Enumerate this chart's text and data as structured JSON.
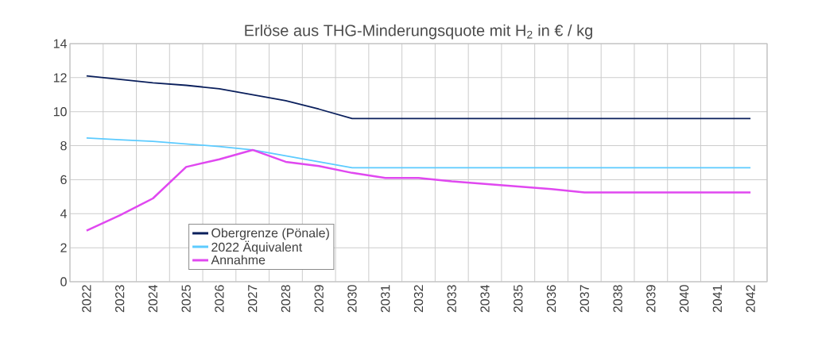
{
  "chart_data": {
    "type": "line",
    "title": "Erlöse aus THG-Minderungsquote mit H$_{2}$ in € / kg",
    "categories": [
      "2022",
      "2023",
      "2024",
      "2025",
      "2026",
      "2027",
      "2028",
      "2029",
      "2030",
      "2031",
      "2032",
      "2033",
      "2034",
      "2035",
      "2036",
      "2037",
      "2038",
      "2039",
      "2040",
      "2041",
      "2042"
    ],
    "series": [
      {
        "name": "Obergrenze (Pönale)",
        "color": "#0a1f5c",
        "values": [
          12.1,
          11.9,
          11.7,
          11.55,
          11.35,
          11.0,
          10.65,
          10.15,
          9.6,
          9.6,
          9.6,
          9.6,
          9.6,
          9.6,
          9.6,
          9.6,
          9.6,
          9.6,
          9.6,
          9.6,
          9.6
        ]
      },
      {
        "name": "2022 Äquivalent",
        "color": "#5ccbff",
        "values": [
          8.45,
          8.35,
          8.25,
          8.1,
          7.95,
          7.75,
          7.4,
          7.05,
          6.7,
          6.7,
          6.7,
          6.7,
          6.7,
          6.7,
          6.7,
          6.7,
          6.7,
          6.7,
          6.7,
          6.7,
          6.7
        ]
      },
      {
        "name": "Annahme",
        "color": "#e048f0",
        "values": [
          3.0,
          3.9,
          4.9,
          6.75,
          7.2,
          7.75,
          7.05,
          6.8,
          6.4,
          6.1,
          6.1,
          5.9,
          5.75,
          5.6,
          5.45,
          5.25,
          5.25,
          5.25,
          5.25,
          5.25,
          5.25
        ]
      }
    ],
    "ylim": [
      0,
      14
    ],
    "yticks": [
      0,
      2,
      4,
      6,
      8,
      10,
      12,
      14
    ],
    "grid": true,
    "legend": "bottom",
    "marker": "none",
    "line_style": "solid"
  }
}
